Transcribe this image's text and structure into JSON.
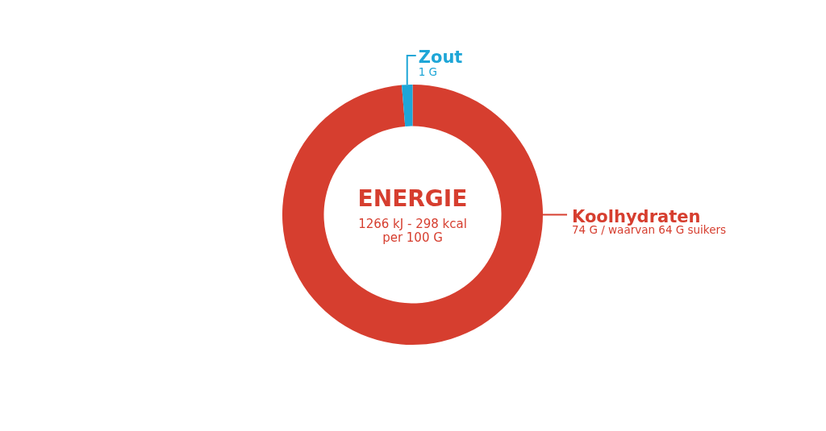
{
  "chart_data": {
    "type": "donut",
    "title": "ENERGIE",
    "annotations": [
      "1266 kJ - 298 kcal",
      "per 100 G"
    ],
    "categories": [
      "Koolhydraten",
      "Zout"
    ],
    "values": [
      74,
      1
    ],
    "colors": [
      "#d63e2f",
      "#1ea6d7"
    ],
    "value_labels": [
      "74 G / waarvan 64 G suikers",
      "1 G"
    ]
  }
}
